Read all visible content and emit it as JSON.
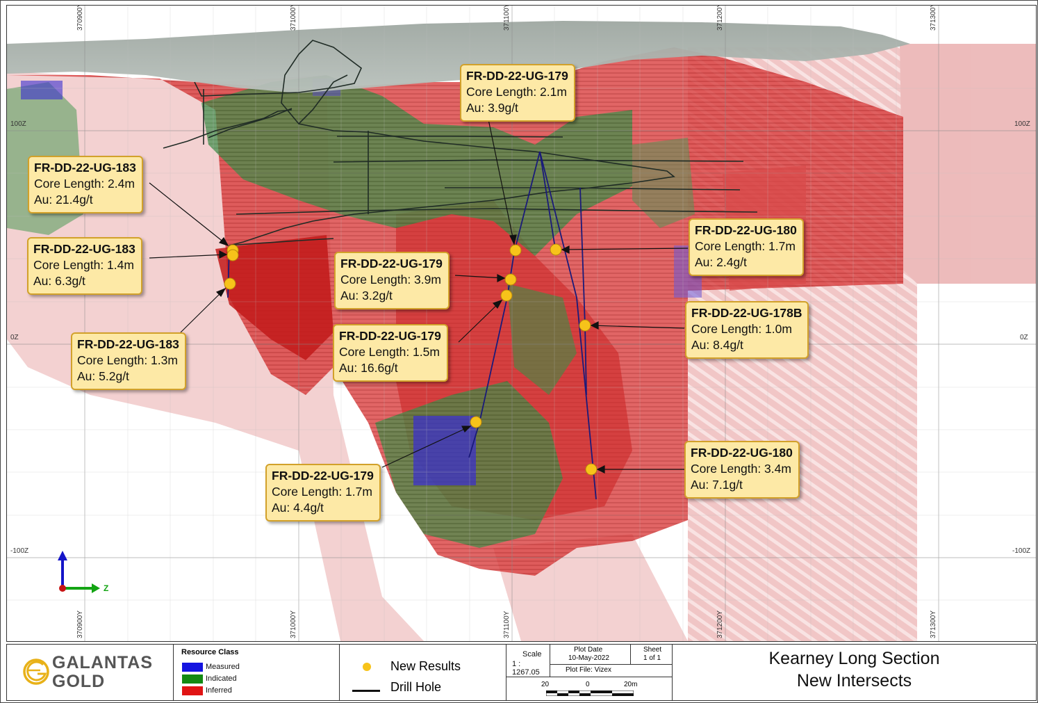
{
  "map": {
    "top_coord_labels": [
      "370900Y",
      "371000Y",
      "371100Y",
      "371200Y",
      "371300Y"
    ],
    "bottom_coord_labels": [
      "370900Y",
      "371000Y",
      "371100Y",
      "371200Y",
      "371300Y"
    ],
    "elevation_labels_left": [
      "100Z",
      "0Z",
      "-100Z"
    ],
    "elevation_labels_right": [
      "100Z",
      "0Z",
      "-100Z"
    ],
    "axis_label": "Z",
    "colors": {
      "measured": "#2a2ad6",
      "indicated": "#1f8a2a",
      "inferred": "#d11f1f",
      "new_result": "#f7c31a",
      "callout_fill": "#fde9a6",
      "callout_border": "#d2a12a"
    }
  },
  "callouts": [
    {
      "hole": "FR-DD-22-UG-183",
      "length": "Core Length: 2.4m",
      "grade": "Au: 21.4g/t"
    },
    {
      "hole": "FR-DD-22-UG-183",
      "length": "Core Length: 1.4m",
      "grade": "Au: 6.3g/t"
    },
    {
      "hole": "FR-DD-22-UG-183",
      "length": "Core Length: 1.3m",
      "grade": "Au: 5.2g/t"
    },
    {
      "hole": "FR-DD-22-UG-179",
      "length": "Core Length: 2.1m",
      "grade": "Au: 3.9g/t"
    },
    {
      "hole": "FR-DD-22-UG-179",
      "length": "Core Length: 3.9m",
      "grade": "Au: 3.2g/t"
    },
    {
      "hole": "FR-DD-22-UG-179",
      "length": "Core Length: 1.5m",
      "grade": "Au: 16.6g/t"
    },
    {
      "hole": "FR-DD-22-UG-179",
      "length": "Core Length: 1.7m",
      "grade": "Au: 4.4g/t"
    },
    {
      "hole": "FR-DD-22-UG-180",
      "length": "Core Length: 1.7m",
      "grade": "Au: 2.4g/t"
    },
    {
      "hole": "FR-DD-22-UG-178B",
      "length": "Core Length: 1.0m",
      "grade": "Au: 8.4g/t"
    },
    {
      "hole": "FR-DD-22-UG-180",
      "length": "Core Length: 3.4m",
      "grade": "Au: 7.1g/t"
    }
  ],
  "titleblock": {
    "logo_line1": "GALANTAS",
    "logo_line2": "GOLD",
    "legend_title": "Resource Class",
    "legend_items": [
      "Measured",
      "Indicated",
      "Inferred"
    ],
    "symbols": [
      "New Results",
      "Drill Hole"
    ],
    "scale_label": "Scale",
    "scale_value": "1 : 1267.05",
    "plot_date_label": "Plot Date",
    "plot_date": "10-May-2022",
    "sheet_label": "Sheet",
    "sheet_value": "1 of 1",
    "plot_file": "Plot File: Vizex",
    "scalebar_labels": [
      "20",
      "0",
      "20m"
    ],
    "title_line1": "Kearney Long Section",
    "title_line2": "New Intersects"
  }
}
